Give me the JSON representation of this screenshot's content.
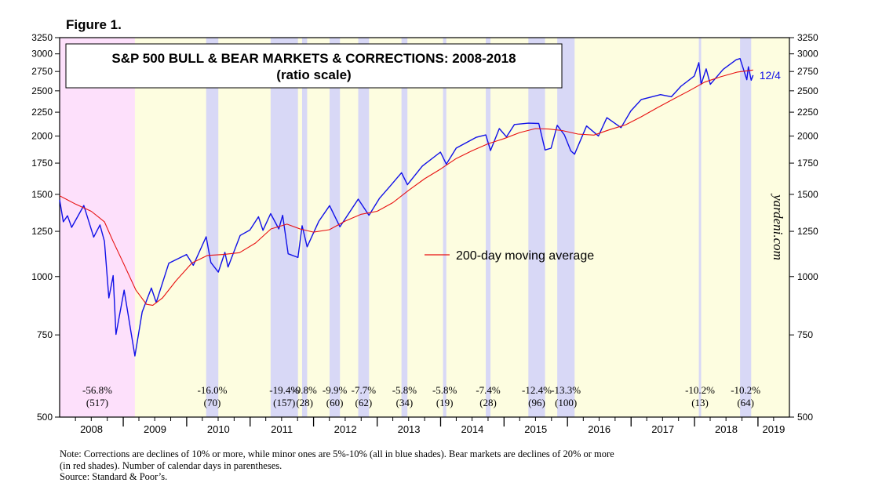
{
  "figure_label": "Figure 1.",
  "watermark": "yardeni.com",
  "notes": {
    "line1": "Note: Corrections are declines of 10% or more, while minor ones are 5%-10% (all in blue shades).  Bear markets are declines of 20% or more",
    "line2": "(in red shades). Number of calendar days in parentheses.",
    "source": "Source: Standard & Poor’s."
  },
  "colors": {
    "background": "#fdfde0",
    "bear_shade": "#fde0fb",
    "correction_shade": "#d8d8f6",
    "sp500_line": "#1010e8",
    "ma_line": "#e81010",
    "frame": "#000000"
  },
  "chart_data": {
    "type": "line",
    "title": "S&P 500 BULL & BEAR MARKETS & CORRECTIONS: 2008-2018",
    "subtitle": "(ratio scale)",
    "scale": "log",
    "ylim": [
      500,
      3250
    ],
    "xlim": [
      "2008-01-01",
      "2019-07-01"
    ],
    "yticks": [
      500,
      750,
      1000,
      1250,
      1500,
      1750,
      2000,
      2250,
      2500,
      2750,
      3000,
      3250
    ],
    "xtick_labels": [
      "2008",
      "2009",
      "2010",
      "2011",
      "2012",
      "2013",
      "2014",
      "2015",
      "2016",
      "2017",
      "2018",
      "2019"
    ],
    "end_label": "12/4",
    "legend": {
      "label": "200-day moving average",
      "placement": "center-right"
    },
    "shaded_periods": [
      {
        "kind": "bear",
        "start": "2007-10-09",
        "end": "2009-03-09",
        "pct": "-56.8%",
        "days": "(517)"
      },
      {
        "kind": "correction",
        "start": "2010-04-23",
        "end": "2010-07-02",
        "pct": "-16.0%",
        "days": "(70)"
      },
      {
        "kind": "correction",
        "start": "2011-04-29",
        "end": "2011-10-03",
        "pct": "-19.4%",
        "days": "(157)"
      },
      {
        "kind": "minor",
        "start": "2011-10-27",
        "end": "2011-11-25",
        "pct": "-9.8%",
        "days": "(28)"
      },
      {
        "kind": "minor",
        "start": "2012-04-02",
        "end": "2012-06-01",
        "pct": "-9.9%",
        "days": "(60)"
      },
      {
        "kind": "minor",
        "start": "2012-09-14",
        "end": "2012-11-15",
        "pct": "-7.7%",
        "days": "(62)"
      },
      {
        "kind": "minor",
        "start": "2013-05-21",
        "end": "2013-06-24",
        "pct": "-5.8%",
        "days": "(34)"
      },
      {
        "kind": "minor",
        "start": "2014-01-15",
        "end": "2014-02-03",
        "pct": "-5.8%",
        "days": "(19)"
      },
      {
        "kind": "minor",
        "start": "2014-09-18",
        "end": "2014-10-15",
        "pct": "-7.4%",
        "days": "(28)"
      },
      {
        "kind": "correction",
        "start": "2015-05-21",
        "end": "2015-08-25",
        "pct": "-12.4%",
        "days": "(96)"
      },
      {
        "kind": "correction",
        "start": "2015-11-03",
        "end": "2016-02-11",
        "pct": "-13.3%",
        "days": "(100)"
      },
      {
        "kind": "correction",
        "start": "2018-01-26",
        "end": "2018-02-08",
        "pct": "-10.2%",
        "days": "(13)"
      },
      {
        "kind": "correction",
        "start": "2018-09-20",
        "end": "2018-11-23",
        "pct": "-10.2%",
        "days": "(64)"
      }
    ],
    "series": [
      {
        "name": "S&P 500",
        "points": [
          [
            "2008-01-01",
            1460
          ],
          [
            "2008-01-22",
            1310
          ],
          [
            "2008-02-15",
            1350
          ],
          [
            "2008-03-10",
            1275
          ],
          [
            "2008-05-19",
            1420
          ],
          [
            "2008-07-15",
            1215
          ],
          [
            "2008-08-20",
            1290
          ],
          [
            "2008-09-15",
            1190
          ],
          [
            "2008-10-10",
            900
          ],
          [
            "2008-11-04",
            1005
          ],
          [
            "2008-11-20",
            752
          ],
          [
            "2009-01-06",
            935
          ],
          [
            "2009-03-09",
            676
          ],
          [
            "2009-04-20",
            840
          ],
          [
            "2009-06-12",
            945
          ],
          [
            "2009-07-10",
            880
          ],
          [
            "2009-09-20",
            1068
          ],
          [
            "2009-12-31",
            1115
          ],
          [
            "2010-02-08",
            1057
          ],
          [
            "2010-04-23",
            1217
          ],
          [
            "2010-05-20",
            1072
          ],
          [
            "2010-07-02",
            1022
          ],
          [
            "2010-08-09",
            1127
          ],
          [
            "2010-08-27",
            1048
          ],
          [
            "2010-11-05",
            1225
          ],
          [
            "2010-12-31",
            1258
          ],
          [
            "2011-02-18",
            1343
          ],
          [
            "2011-03-16",
            1256
          ],
          [
            "2011-04-29",
            1364
          ],
          [
            "2011-06-15",
            1265
          ],
          [
            "2011-07-07",
            1353
          ],
          [
            "2011-08-08",
            1119
          ],
          [
            "2011-10-03",
            1099
          ],
          [
            "2011-10-27",
            1285
          ],
          [
            "2011-11-25",
            1158
          ],
          [
            "2012-01-31",
            1313
          ],
          [
            "2012-04-02",
            1419
          ],
          [
            "2012-06-01",
            1278
          ],
          [
            "2012-09-14",
            1465
          ],
          [
            "2012-11-15",
            1353
          ],
          [
            "2013-01-15",
            1472
          ],
          [
            "2013-03-15",
            1560
          ],
          [
            "2013-05-21",
            1669
          ],
          [
            "2013-06-24",
            1573
          ],
          [
            "2013-09-18",
            1725
          ],
          [
            "2013-12-31",
            1848
          ],
          [
            "2014-02-03",
            1741
          ],
          [
            "2014-04-01",
            1885
          ],
          [
            "2014-07-24",
            1987
          ],
          [
            "2014-09-18",
            2011
          ],
          [
            "2014-10-15",
            1862
          ],
          [
            "2014-12-05",
            2075
          ],
          [
            "2015-01-15",
            1992
          ],
          [
            "2015-03-02",
            2117
          ],
          [
            "2015-05-21",
            2131
          ],
          [
            "2015-07-20",
            2128
          ],
          [
            "2015-08-25",
            1867
          ],
          [
            "2015-09-29",
            1884
          ],
          [
            "2015-11-03",
            2109
          ],
          [
            "2015-12-14",
            2012
          ],
          [
            "2016-01-20",
            1859
          ],
          [
            "2016-02-11",
            1829
          ],
          [
            "2016-04-20",
            2102
          ],
          [
            "2016-06-27",
            2000
          ],
          [
            "2016-08-15",
            2190
          ],
          [
            "2016-11-04",
            2085
          ],
          [
            "2016-12-31",
            2265
          ],
          [
            "2017-03-01",
            2395
          ],
          [
            "2017-06-19",
            2453
          ],
          [
            "2017-08-21",
            2428
          ],
          [
            "2017-10-15",
            2557
          ],
          [
            "2017-12-31",
            2690
          ],
          [
            "2018-01-26",
            2873
          ],
          [
            "2018-02-08",
            2581
          ],
          [
            "2018-03-09",
            2786
          ],
          [
            "2018-04-02",
            2581
          ],
          [
            "2018-06-15",
            2780
          ],
          [
            "2018-08-29",
            2914
          ],
          [
            "2018-09-20",
            2931
          ],
          [
            "2018-10-29",
            2641
          ],
          [
            "2018-11-07",
            2814
          ],
          [
            "2018-11-23",
            2633
          ],
          [
            "2018-12-04",
            2700
          ]
        ]
      },
      {
        "name": "200-day moving average",
        "points": [
          [
            "2008-01-01",
            1490
          ],
          [
            "2008-04-01",
            1430
          ],
          [
            "2008-07-01",
            1380
          ],
          [
            "2008-09-15",
            1310
          ],
          [
            "2008-11-01",
            1195
          ],
          [
            "2009-01-01",
            1070
          ],
          [
            "2009-03-15",
            935
          ],
          [
            "2009-05-15",
            872
          ],
          [
            "2009-06-20",
            868
          ],
          [
            "2009-08-15",
            900
          ],
          [
            "2009-11-01",
            980
          ],
          [
            "2010-02-01",
            1070
          ],
          [
            "2010-05-01",
            1110
          ],
          [
            "2010-08-01",
            1115
          ],
          [
            "2010-11-01",
            1125
          ],
          [
            "2011-02-01",
            1180
          ],
          [
            "2011-05-01",
            1265
          ],
          [
            "2011-08-01",
            1295
          ],
          [
            "2011-10-15",
            1265
          ],
          [
            "2012-01-01",
            1245
          ],
          [
            "2012-04-01",
            1260
          ],
          [
            "2012-07-01",
            1315
          ],
          [
            "2012-10-01",
            1360
          ],
          [
            "2013-01-01",
            1380
          ],
          [
            "2013-04-01",
            1440
          ],
          [
            "2013-07-01",
            1530
          ],
          [
            "2013-10-01",
            1620
          ],
          [
            "2014-01-01",
            1700
          ],
          [
            "2014-04-01",
            1790
          ],
          [
            "2014-07-01",
            1860
          ],
          [
            "2014-10-01",
            1925
          ],
          [
            "2015-01-01",
            1975
          ],
          [
            "2015-04-01",
            2035
          ],
          [
            "2015-07-01",
            2075
          ],
          [
            "2015-09-15",
            2070
          ],
          [
            "2015-12-01",
            2055
          ],
          [
            "2016-03-01",
            2020
          ],
          [
            "2016-06-01",
            2010
          ],
          [
            "2016-09-01",
            2065
          ],
          [
            "2016-12-01",
            2115
          ],
          [
            "2017-03-01",
            2200
          ],
          [
            "2017-06-01",
            2300
          ],
          [
            "2017-09-01",
            2400
          ],
          [
            "2017-12-01",
            2500
          ],
          [
            "2018-03-01",
            2610
          ],
          [
            "2018-06-01",
            2680
          ],
          [
            "2018-09-01",
            2740
          ],
          [
            "2018-12-04",
            2770
          ]
        ]
      }
    ]
  }
}
